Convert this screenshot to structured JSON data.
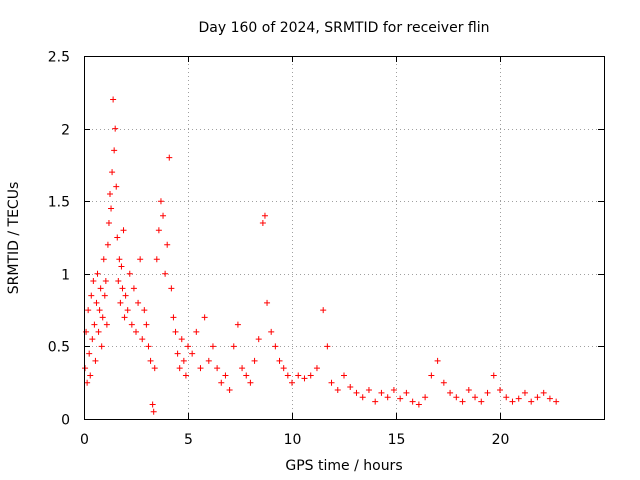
{
  "chart_data": {
    "type": "scatter",
    "title": "Day 160 of 2024, SRMTID for receiver flin",
    "xlabel": "GPS time / hours",
    "ylabel": "SRMTID / TECUs",
    "xlim": [
      0,
      25
    ],
    "ylim": [
      0,
      2.5
    ],
    "x_ticks": [
      0,
      5,
      10,
      15,
      20
    ],
    "x_tick_labels": [
      "0",
      "5",
      "10",
      "15",
      "20"
    ],
    "y_ticks": [
      0,
      0.5,
      1,
      1.5,
      2,
      2.5
    ],
    "y_tick_labels": [
      "0",
      "0.5",
      "1",
      "1.5",
      "2",
      "2.5"
    ],
    "grid": true,
    "marker": "plus",
    "color": "#ff0000",
    "series": [
      {
        "name": "SRMTID",
        "x": [
          0.05,
          0.1,
          0.15,
          0.2,
          0.25,
          0.3,
          0.35,
          0.4,
          0.45,
          0.5,
          0.55,
          0.6,
          0.65,
          0.7,
          0.75,
          0.8,
          0.85,
          0.9,
          0.95,
          1.0,
          1.05,
          1.1,
          1.15,
          1.2,
          1.25,
          1.3,
          1.35,
          1.4,
          1.45,
          1.5,
          1.55,
          1.6,
          1.65,
          1.7,
          1.75,
          1.8,
          1.85,
          1.9,
          1.95,
          2.0,
          2.1,
          2.2,
          2.3,
          2.4,
          2.5,
          2.6,
          2.7,
          2.8,
          2.9,
          3.0,
          3.1,
          3.2,
          3.3,
          3.35,
          3.4,
          3.5,
          3.6,
          3.7,
          3.8,
          3.9,
          4.0,
          4.1,
          4.2,
          4.3,
          4.4,
          4.5,
          4.6,
          4.7,
          4.8,
          4.9,
          5.0,
          5.2,
          5.4,
          5.6,
          5.8,
          6.0,
          6.2,
          6.4,
          6.6,
          6.8,
          7.0,
          7.2,
          7.4,
          7.6,
          7.8,
          8.0,
          8.2,
          8.4,
          8.6,
          8.7,
          8.8,
          9.0,
          9.2,
          9.4,
          9.6,
          9.8,
          10.0,
          10.3,
          10.6,
          10.9,
          11.2,
          11.5,
          11.7,
          11.9,
          12.2,
          12.5,
          12.8,
          13.1,
          13.4,
          13.7,
          14.0,
          14.3,
          14.6,
          14.9,
          15.2,
          15.5,
          15.8,
          16.1,
          16.4,
          16.7,
          17.0,
          17.3,
          17.6,
          17.9,
          18.2,
          18.5,
          18.8,
          19.1,
          19.4,
          19.7,
          20.0,
          20.3,
          20.6,
          20.9,
          21.2,
          21.5,
          21.8,
          22.1,
          22.4,
          22.7
        ],
        "y": [
          0.35,
          0.6,
          0.25,
          0.75,
          0.45,
          0.3,
          0.85,
          0.55,
          0.95,
          0.65,
          0.4,
          0.8,
          1.0,
          0.6,
          0.75,
          0.9,
          0.5,
          0.7,
          1.1,
          0.85,
          0.95,
          0.65,
          1.2,
          1.35,
          1.55,
          1.45,
          1.7,
          2.2,
          1.85,
          2.0,
          1.6,
          1.25,
          0.95,
          1.1,
          0.8,
          1.05,
          0.9,
          1.3,
          0.7,
          0.85,
          0.75,
          1.0,
          0.65,
          0.9,
          0.6,
          0.8,
          1.1,
          0.55,
          0.75,
          0.65,
          0.5,
          0.4,
          0.1,
          0.05,
          0.35,
          1.1,
          1.3,
          1.5,
          1.4,
          1.0,
          1.2,
          1.8,
          0.9,
          0.7,
          0.6,
          0.45,
          0.35,
          0.55,
          0.4,
          0.3,
          0.5,
          0.45,
          0.6,
          0.35,
          0.7,
          0.4,
          0.5,
          0.35,
          0.25,
          0.3,
          0.2,
          0.5,
          0.65,
          0.35,
          0.3,
          0.25,
          0.4,
          0.55,
          1.35,
          1.4,
          0.8,
          0.6,
          0.5,
          0.4,
          0.35,
          0.3,
          0.25,
          0.3,
          0.28,
          0.3,
          0.35,
          0.75,
          0.5,
          0.25,
          0.2,
          0.3,
          0.22,
          0.18,
          0.15,
          0.2,
          0.12,
          0.18,
          0.15,
          0.2,
          0.14,
          0.18,
          0.12,
          0.1,
          0.15,
          0.3,
          0.4,
          0.25,
          0.18,
          0.15,
          0.12,
          0.2,
          0.15,
          0.12,
          0.18,
          0.3,
          0.2,
          0.15,
          0.12,
          0.14,
          0.18,
          0.12,
          0.15,
          0.18,
          0.14,
          0.12
        ]
      }
    ]
  }
}
